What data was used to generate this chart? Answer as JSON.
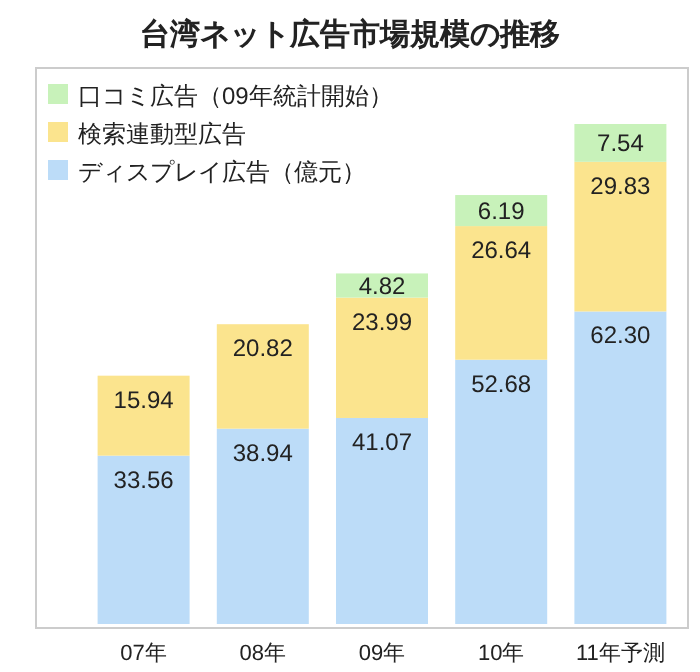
{
  "chart_data": {
    "type": "bar",
    "title": "台湾ネット広告市場規模の推移",
    "categories": [
      "07年",
      "08年",
      "09年",
      "10年",
      "11年予測"
    ],
    "stacked": true,
    "data_labels": true,
    "legend": "top left",
    "series": [
      {
        "name": "ディスプレイ広告（億元）",
        "color": "#bcdcf8",
        "values": [
          33.56,
          38.94,
          41.07,
          52.68,
          62.3
        ],
        "value_labels": [
          "33.56",
          "38.94",
          "41.07",
          "52.68",
          "62.30"
        ]
      },
      {
        "name": "検索連動型広告",
        "color": "#fbe48e",
        "values": [
          15.94,
          20.82,
          23.99,
          26.64,
          29.83
        ],
        "value_labels": [
          "15.94",
          "20.82",
          "23.99",
          "26.64",
          "29.83"
        ]
      },
      {
        "name": "口コミ広告（09年統計開始）",
        "color": "#c8f2ba",
        "values": [
          null,
          null,
          4.82,
          6.19,
          7.54
        ],
        "value_labels": [
          null,
          null,
          "4.82",
          "6.19",
          "7.54"
        ]
      }
    ]
  }
}
